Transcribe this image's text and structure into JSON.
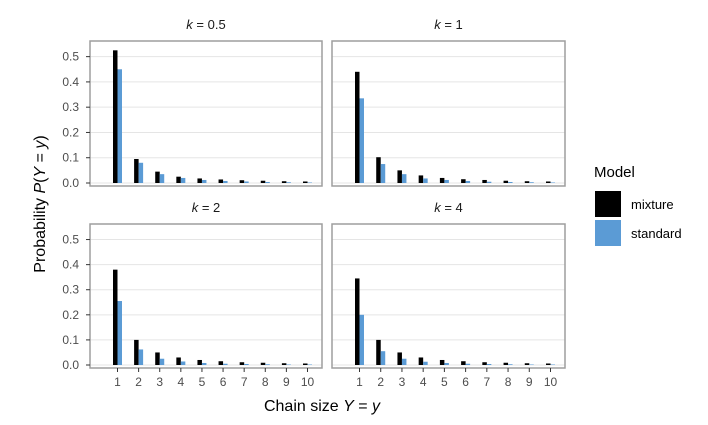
{
  "chart_data": {
    "type": "bar",
    "xlabel": "Chain size Y = y",
    "ylabel": "Probability P(Y = y)",
    "ylim": [
      0,
      0.55
    ],
    "yticks": [
      0.0,
      0.1,
      0.2,
      0.3,
      0.4,
      0.5
    ],
    "ytick_labels": [
      "0.0",
      "0.1",
      "0.2",
      "0.3",
      "0.4",
      "0.5"
    ],
    "categories": [
      "1",
      "2",
      "3",
      "4",
      "5",
      "6",
      "7",
      "8",
      "9",
      "10"
    ],
    "grid": true,
    "legend": {
      "title": "Model",
      "position": "right",
      "entries": [
        {
          "name": "mixture",
          "color": "#000000"
        },
        {
          "name": "standard",
          "color": "#5b9bd5"
        }
      ]
    },
    "panels": [
      {
        "label": "k = 0.5",
        "k": "0.5",
        "series": [
          {
            "name": "mixture",
            "values": [
              0.525,
              0.095,
              0.045,
              0.025,
              0.018,
              0.014,
              0.011,
              0.009,
              0.007,
              0.006
            ]
          },
          {
            "name": "standard",
            "values": [
              0.45,
              0.08,
              0.035,
              0.02,
              0.012,
              0.008,
              0.006,
              0.004,
              0.003,
              0.002
            ]
          }
        ]
      },
      {
        "label": "k = 1",
        "k": "1",
        "series": [
          {
            "name": "mixture",
            "values": [
              0.44,
              0.102,
              0.05,
              0.03,
              0.02,
              0.015,
              0.012,
              0.009,
              0.007,
              0.006
            ]
          },
          {
            "name": "standard",
            "values": [
              0.335,
              0.075,
              0.035,
              0.018,
              0.012,
              0.008,
              0.005,
              0.004,
              0.003,
              0.002
            ]
          }
        ]
      },
      {
        "label": "k = 2",
        "k": "2",
        "series": [
          {
            "name": "mixture",
            "values": [
              0.38,
              0.1,
              0.05,
              0.03,
              0.02,
              0.015,
              0.011,
              0.009,
              0.007,
              0.006
            ]
          },
          {
            "name": "standard",
            "values": [
              0.255,
              0.062,
              0.025,
              0.014,
              0.008,
              0.005,
              0.004,
              0.003,
              0.002,
              0.002
            ]
          }
        ]
      },
      {
        "label": "k = 4",
        "k": "4",
        "series": [
          {
            "name": "mixture",
            "values": [
              0.345,
              0.1,
              0.05,
              0.03,
              0.02,
              0.015,
              0.011,
              0.009,
              0.007,
              0.006
            ]
          },
          {
            "name": "standard",
            "values": [
              0.2,
              0.055,
              0.025,
              0.013,
              0.008,
              0.005,
              0.004,
              0.003,
              0.002,
              0.002
            ]
          }
        ]
      }
    ]
  }
}
